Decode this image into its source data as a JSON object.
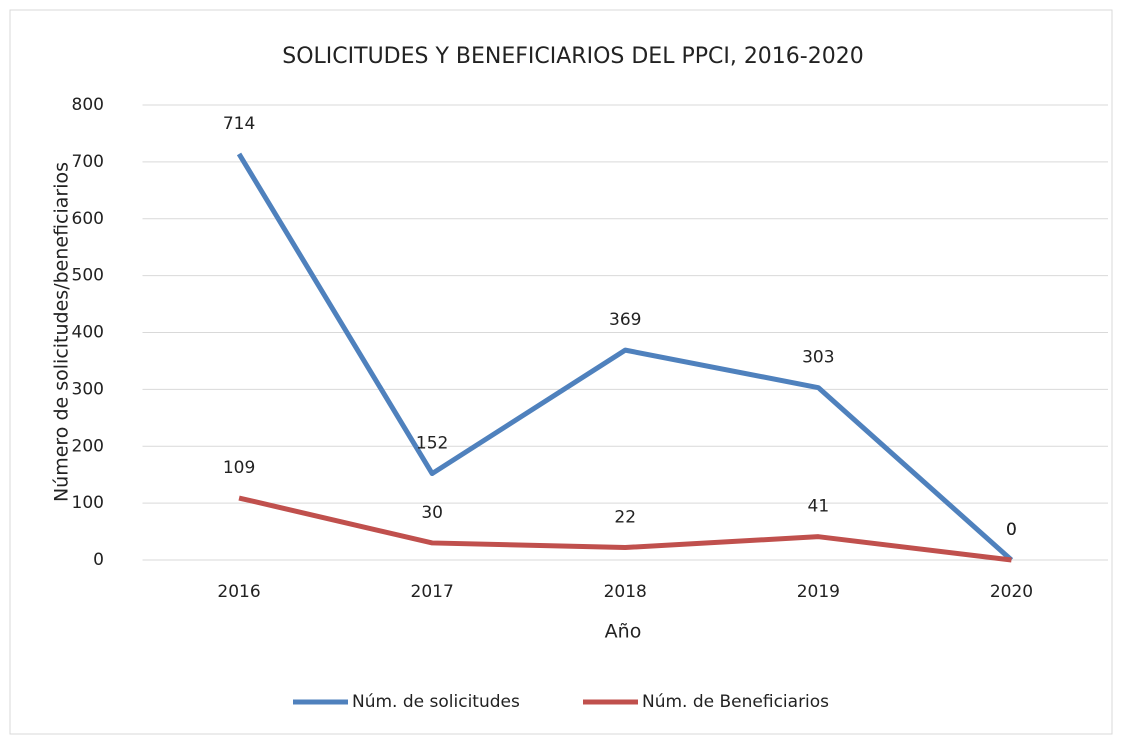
{
  "chart_data": {
    "type": "line",
    "title": "SOLICITUDES Y BENEFICIARIOS DEL PPCI, 2016-2020",
    "x_label": "Año",
    "y_label": "Número de solicitudes/beneficiarios",
    "categories": [
      "2016",
      "2017",
      "2018",
      "2019",
      "2020"
    ],
    "series": [
      {
        "name": "Núm. de solicitudes",
        "color": "#4f81bd",
        "values": [
          714,
          152,
          369,
          303,
          0
        ]
      },
      {
        "name": "Núm. de Beneficiarios",
        "color": "#c0504d",
        "values": [
          109,
          30,
          22,
          41,
          0
        ]
      }
    ],
    "ylim": [
      0,
      800
    ],
    "yticks": [
      0,
      100,
      200,
      300,
      400,
      500,
      600,
      700,
      800
    ],
    "grid": true,
    "legend": "bottom",
    "data_labels": true
  }
}
